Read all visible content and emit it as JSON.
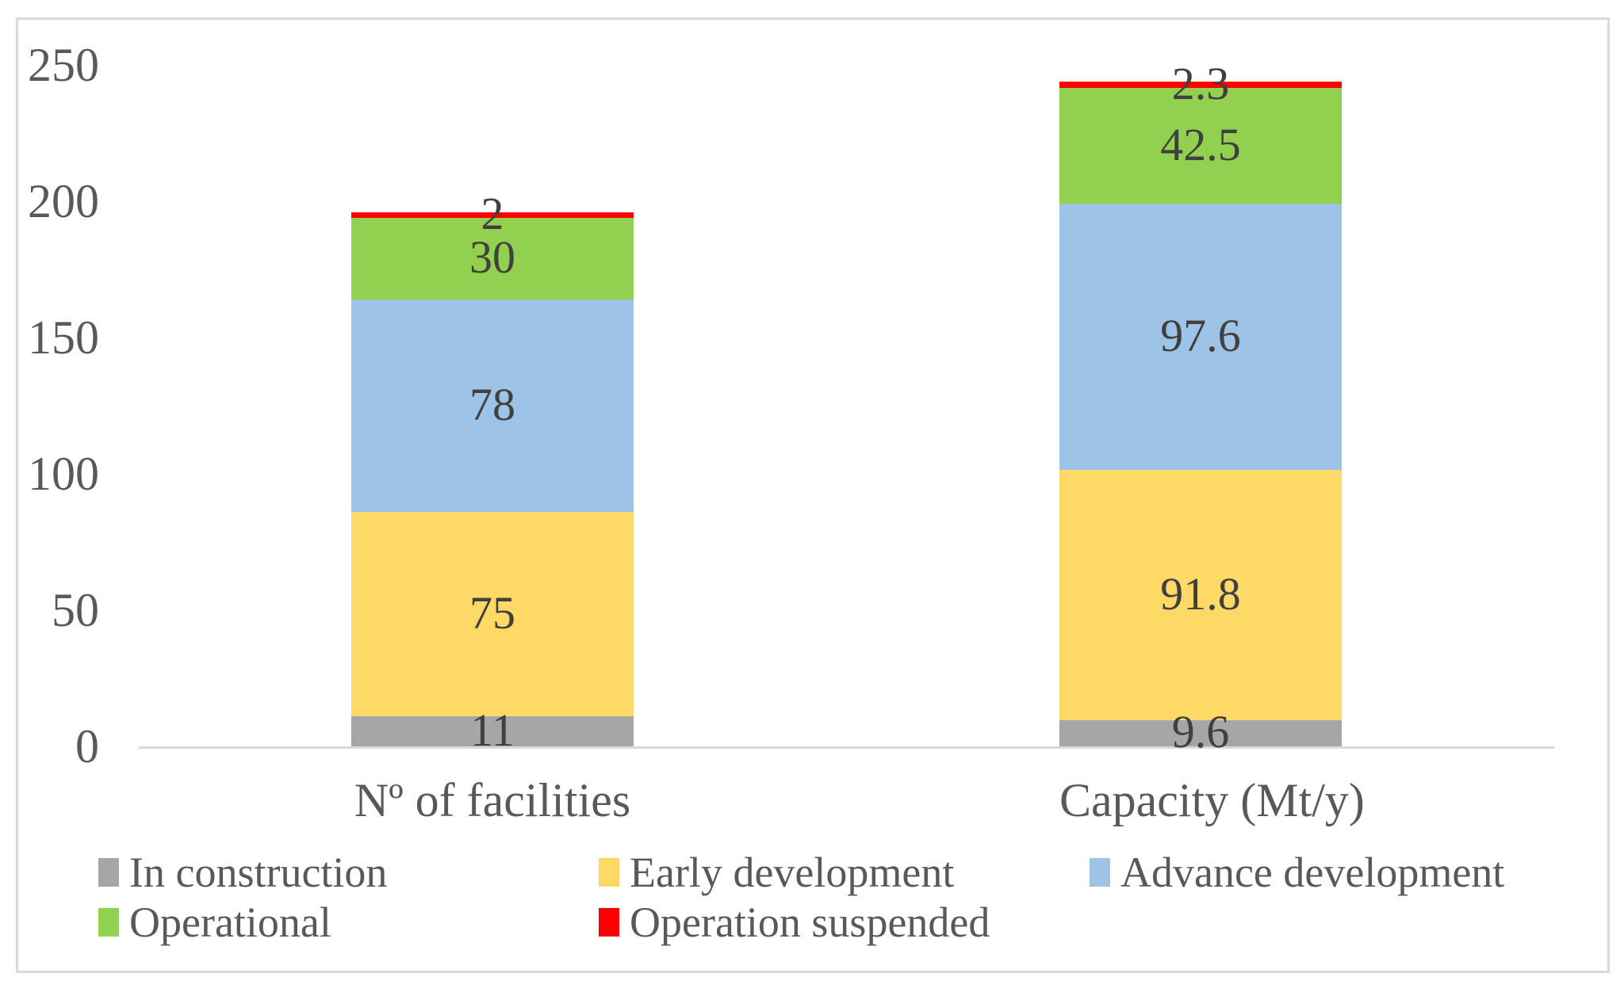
{
  "chart_data": {
    "type": "bar",
    "stacked": true,
    "categories": [
      "Nº of facilities",
      "Capacity (Mt/y)"
    ],
    "series": [
      {
        "name": "In construction",
        "color": "#A6A6A6",
        "values": [
          11,
          9.6
        ]
      },
      {
        "name": "Early development",
        "color": "#FFD966",
        "values": [
          75,
          91.8
        ]
      },
      {
        "name": "Advance development",
        "color": "#9DC3E6",
        "values": [
          78,
          97.6
        ]
      },
      {
        "name": "Operational",
        "color": "#92D050",
        "values": [
          30,
          42.5
        ]
      },
      {
        "name": "Operation suspended",
        "color": "#FF0000",
        "values": [
          2,
          2.3
        ]
      }
    ],
    "data_labels": {
      "Nº of facilities": [
        "11",
        "75",
        "78",
        "30",
        "2"
      ],
      "Capacity (Mt/y)": [
        "9.6",
        "91.8",
        "97.6",
        "42.5",
        "2.3"
      ]
    },
    "ylabel": "",
    "xlabel": "",
    "ylim": [
      0,
      250
    ],
    "yticks": [
      "0",
      "50",
      "100",
      "150",
      "200",
      "250"
    ],
    "grid": false,
    "legend_position": "bottom"
  },
  "colors": {
    "background": "#FFFFFF",
    "frame_border": "#D9D9D9",
    "axis_line": "#D9D9D9",
    "tick_text": "#595959",
    "category_text": "#595959",
    "data_label_text": "#404040",
    "legend_text": "#595959"
  }
}
